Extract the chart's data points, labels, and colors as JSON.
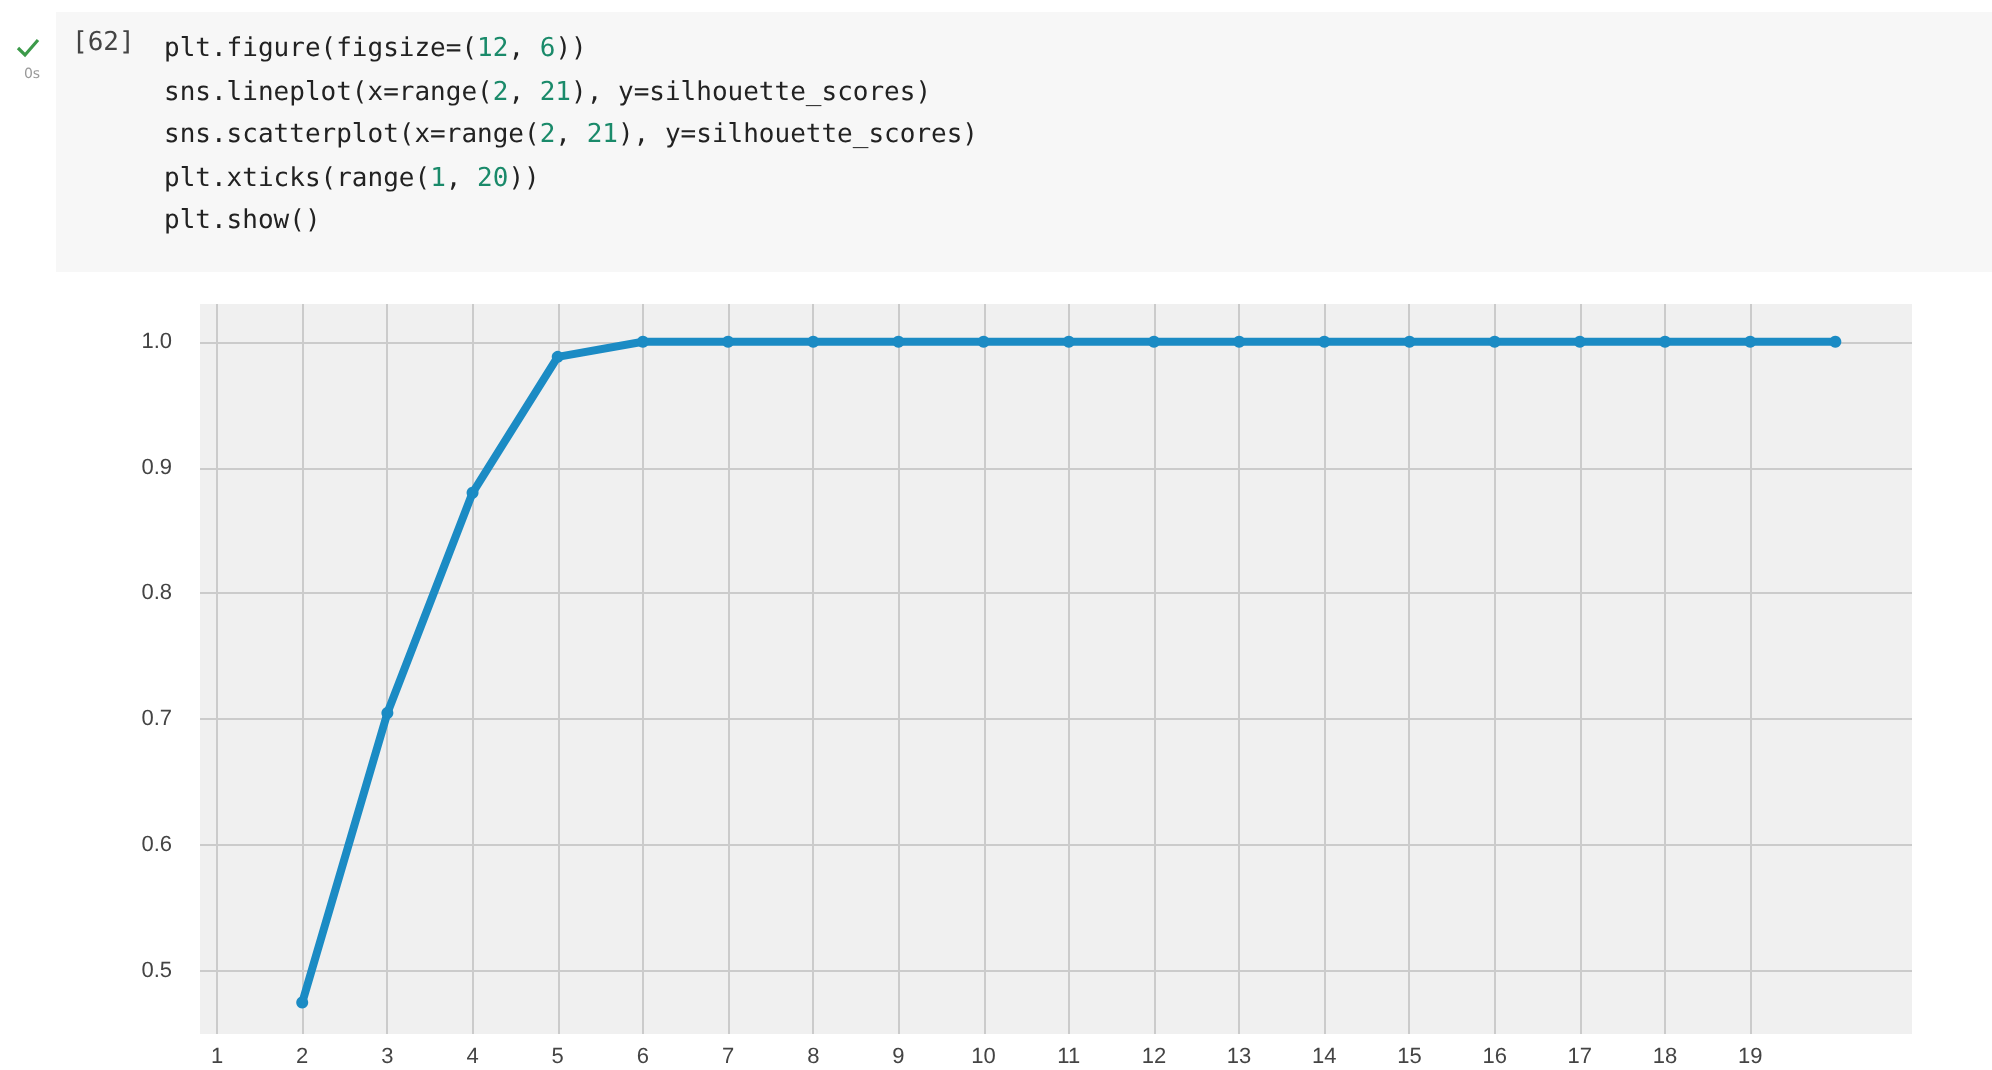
{
  "chart_data": {
    "type": "line",
    "annotations": [
      "0s",
      "[62]",
      "plt.figure(figsize=(12, 6))",
      "sns.lineplot(x=range(2, 21), y=silhouette_scores)",
      "sns.scatterplot(x=range(2, 21), y=silhouette_scores)",
      "plt.xticks(range(1, 20))",
      "plt.show()"
    ],
    "x": [
      2,
      3,
      4,
      5,
      6,
      7,
      8,
      9,
      10,
      11,
      12,
      13,
      14,
      15,
      16,
      17,
      18,
      19,
      20
    ],
    "series": [
      {
        "color": "#1b8bc4",
        "values": [
          0.475,
          0.705,
          0.88,
          0.988,
          1.0,
          1.0,
          1.0,
          1.0,
          1.0,
          1.0,
          1.0,
          1.0,
          1.0,
          1.0,
          1.0,
          1.0,
          1.0,
          1.0,
          1.0
        ]
      }
    ],
    "xlim": [
      0.8,
      20.9
    ],
    "xticks": [
      1,
      2,
      3,
      4,
      5,
      6,
      7,
      8,
      9,
      10,
      11,
      12,
      13,
      14,
      15,
      16,
      17,
      18,
      19
    ],
    "ylim": [
      0.45,
      1.03
    ],
    "yticks": [
      0.5,
      0.6,
      0.7,
      0.8,
      0.9,
      {
        "value": 1,
        "label": "1.0"
      }
    ],
    "grid": true,
    "marker": "circle",
    "line_style": "solid"
  }
}
